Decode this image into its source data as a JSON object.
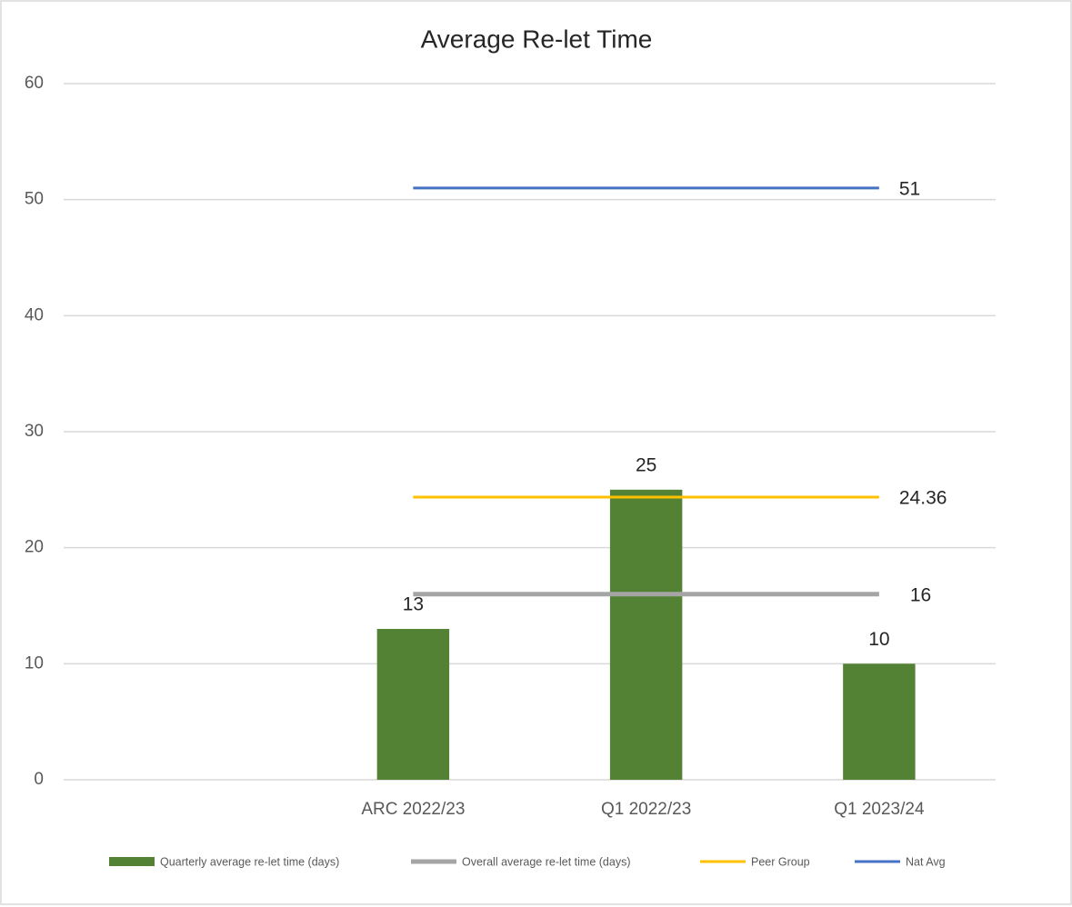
{
  "chart_data": {
    "type": "combo",
    "title": "Average Re-let Time",
    "categories": [
      null,
      "ARC 2022/23",
      "Q1 2022/23",
      "Q1 2023/24"
    ],
    "series": [
      {
        "name": "Quarterly average re-let time (days)",
        "type": "bar",
        "color": "#548235",
        "values": [
          null,
          13,
          25,
          10
        ]
      },
      {
        "name": "Overall average re-let time (days)",
        "type": "line",
        "color": "#a5a5a5",
        "line_width": 5,
        "values": [
          null,
          16,
          16,
          16
        ]
      },
      {
        "name": "Peer Group",
        "type": "line",
        "color": "#ffc000",
        "line_width": 3,
        "values": [
          null,
          24.36,
          24.36,
          24.36
        ]
      },
      {
        "name": "Nat Avg",
        "type": "line",
        "color": "#4472c4",
        "line_width": 3,
        "values": [
          null,
          51,
          51,
          51
        ]
      }
    ],
    "ylim": [
      0,
      60
    ],
    "yticks": [
      0,
      10,
      20,
      30,
      40,
      50,
      60
    ],
    "grid": true,
    "legend": "bottom"
  }
}
